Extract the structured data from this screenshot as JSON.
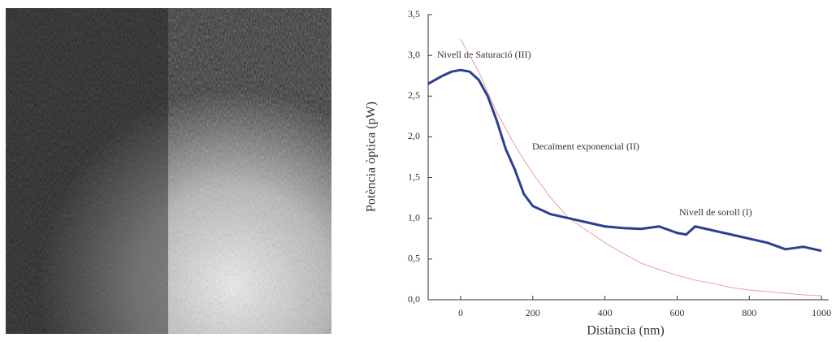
{
  "chart_data": {
    "type": "line",
    "x_label": "Distància (nm)",
    "y_label": "Potència òptica (pW)",
    "annotations": [
      "Nivell de Saturació (III)",
      "Decaïment exponencial (II)",
      "Nivell de soroll (I)"
    ],
    "x": [
      -90,
      -50,
      -25,
      0,
      25,
      50,
      75,
      100,
      125,
      150,
      175,
      200,
      225,
      250,
      300,
      350,
      400,
      450,
      500,
      550,
      600,
      625,
      650,
      700,
      750,
      800,
      850,
      900,
      950,
      1000
    ],
    "series": [
      {
        "color": "#e8a0a0",
        "values": [
          null,
          null,
          null,
          3.2,
          3.0,
          2.8,
          2.55,
          2.3,
          2.1,
          1.9,
          1.72,
          1.55,
          1.4,
          1.25,
          1.0,
          0.85,
          0.7,
          0.57,
          0.45,
          0.37,
          0.3,
          0.27,
          0.24,
          0.2,
          0.15,
          0.12,
          0.1,
          0.08,
          0.06,
          0.05
        ]
      },
      {
        "color": "#2a3f8f",
        "values": [
          2.65,
          2.75,
          2.8,
          2.82,
          2.8,
          2.7,
          2.5,
          2.2,
          1.85,
          1.6,
          1.3,
          1.15,
          1.1,
          1.05,
          1.0,
          0.95,
          0.9,
          0.88,
          0.87,
          0.9,
          0.82,
          0.8,
          0.9,
          0.85,
          0.8,
          0.75,
          0.7,
          0.62,
          0.65,
          0.6
        ]
      }
    ],
    "xlim": [
      -90,
      1020
    ],
    "xticks": [
      0,
      200,
      400,
      600,
      800,
      1000
    ],
    "ylim": [
      0,
      3.5
    ],
    "yticks": [
      {
        "value": 0,
        "label": "0,0"
      },
      {
        "value": 0.5,
        "label": "0,5"
      },
      {
        "value": 1,
        "label": "1,0"
      },
      {
        "value": 1.5,
        "label": "1,5"
      },
      {
        "value": 2,
        "label": "2,0"
      },
      {
        "value": 2.5,
        "label": "2,5"
      },
      {
        "value": 3,
        "label": "3,0"
      },
      {
        "value": 3.5,
        "label": "3,5"
      }
    ]
  }
}
